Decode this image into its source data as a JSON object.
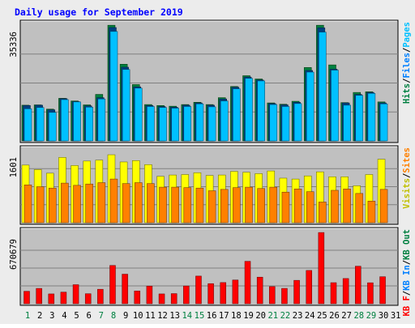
{
  "chart_data": {
    "title": "Daily usage for September 2019",
    "colors": {
      "title": "#0000ff",
      "background": "#ececec",
      "panel": "#c0c0c0",
      "hits_front": "#00c0ff",
      "hits_back": "#008040",
      "files_front": "#0080ff",
      "files_back": "#004080",
      "pages": "#00c0ff",
      "visits": "#ffff00",
      "sites": "#ff8000",
      "kbytes": "#ff0000",
      "weekend_day": "#008040",
      "weekday": "#000000"
    },
    "days": [
      {
        "label": "1",
        "weekend": true
      },
      {
        "label": "2",
        "weekend": false
      },
      {
        "label": "3",
        "weekend": false
      },
      {
        "label": "4",
        "weekend": false
      },
      {
        "label": "5",
        "weekend": false
      },
      {
        "label": "6",
        "weekend": false
      },
      {
        "label": "7",
        "weekend": true
      },
      {
        "label": "8",
        "weekend": true
      },
      {
        "label": "9",
        "weekend": false
      },
      {
        "label": "10",
        "weekend": false
      },
      {
        "label": "11",
        "weekend": false
      },
      {
        "label": "12",
        "weekend": false
      },
      {
        "label": "13",
        "weekend": false
      },
      {
        "label": "14",
        "weekend": true
      },
      {
        "label": "15",
        "weekend": true
      },
      {
        "label": "16",
        "weekend": false
      },
      {
        "label": "17",
        "weekend": false
      },
      {
        "label": "18",
        "weekend": false
      },
      {
        "label": "19",
        "weekend": false
      },
      {
        "label": "20",
        "weekend": false
      },
      {
        "label": "21",
        "weekend": true
      },
      {
        "label": "22",
        "weekend": true
      },
      {
        "label": "23",
        "weekend": false
      },
      {
        "label": "24",
        "weekend": false
      },
      {
        "label": "25",
        "weekend": false
      },
      {
        "label": "26",
        "weekend": false
      },
      {
        "label": "27",
        "weekend": false
      },
      {
        "label": "28",
        "weekend": true
      },
      {
        "label": "29",
        "weekend": true
      },
      {
        "label": "30",
        "weekend": false
      },
      {
        "label": "31",
        "weekend": false
      }
    ],
    "panels": [
      {
        "key": "hits",
        "ymax_label": "35336",
        "ymax": 35336,
        "axis_labels": [
          {
            "text": "Hits",
            "color": "#008040"
          },
          {
            "text": "/",
            "color": "#000000"
          },
          {
            "text": "Files",
            "color": "#0080ff"
          },
          {
            "text": "/",
            "color": "#000000"
          },
          {
            "text": "Pages",
            "color": "#00c0ff"
          }
        ],
        "series": [
          {
            "name": "Hits",
            "values": [
              10900,
              11000,
              9700,
              13000,
              12200,
              11000,
              14200,
              35300,
              23400,
              17200,
              11100,
              10800,
              10600,
              11100,
              11800,
              11100,
              13200,
              16600,
              19900,
              18900,
              11600,
              11200,
              12100,
              22400,
              35300,
              23200,
              11700,
              14800,
              15000,
              11900,
              null
            ]
          },
          {
            "name": "Files",
            "values": [
              10800,
              10900,
              9500,
              12900,
              12000,
              10700,
              13200,
              34600,
              22500,
              16500,
              10800,
              10500,
              10300,
              10900,
              11600,
              10900,
              12800,
              16400,
              19500,
              18600,
              11400,
              11000,
              11800,
              21500,
              34500,
              21900,
              11600,
              14200,
              14800,
              11600,
              null
            ]
          },
          {
            "name": "Pages",
            "values": [
              9800,
              10200,
              8700,
              12600,
              11900,
              10300,
              12800,
              33400,
              21800,
              16100,
              10500,
              10200,
              10000,
              10500,
              11300,
              10400,
              12200,
              15900,
              19100,
              18300,
              11100,
              10500,
              11400,
              21000,
              33200,
              21600,
              10900,
              13900,
              14500,
              11300,
              null
            ]
          }
        ]
      },
      {
        "key": "visits",
        "ymax_label": "1601",
        "ymax": 1601,
        "axis_labels": [
          {
            "text": "Visits",
            "color": "#c0c000"
          },
          {
            "text": "/",
            "color": "#000000"
          },
          {
            "text": "Sites",
            "color": "#ff8000"
          }
        ],
        "series": [
          {
            "name": "Visits",
            "values": [
              1280,
              1180,
              1100,
              1450,
              1270,
              1370,
              1390,
              1510,
              1350,
              1380,
              1290,
              1030,
              1060,
              1070,
              1110,
              1050,
              1060,
              1140,
              1120,
              1090,
              1150,
              990,
              970,
              1040,
              1130,
              1020,
              1020,
              820,
              1070,
              1410,
              null
            ]
          },
          {
            "name": "Sites",
            "values": [
              840,
              800,
              770,
              880,
              830,
              860,
              890,
              970,
              870,
              890,
              870,
              790,
              790,
              780,
              770,
              710,
              740,
              780,
              790,
              760,
              790,
              680,
              750,
              690,
              460,
              720,
              750,
              650,
              480,
              740,
              null
            ]
          }
        ]
      },
      {
        "key": "kbytes",
        "ymax_label": "670679",
        "ymax": 670679,
        "axis_labels": [
          {
            "text": "KB F",
            "color": "#ff0000"
          },
          {
            "text": "/",
            "color": "#000000"
          },
          {
            "text": "KB In",
            "color": "#0080ff"
          },
          {
            "text": "/",
            "color": "#000000"
          },
          {
            "text": "KB Out",
            "color": "#008040"
          }
        ],
        "series": [
          {
            "name": "KB F",
            "values": [
              117000,
              144000,
              92000,
              109000,
              179000,
              94000,
              136000,
              360000,
              278000,
              120000,
              166000,
              92000,
              95000,
              167000,
              260000,
              189000,
              199000,
              223000,
              399000,
              250000,
              161000,
              144000,
              220000,
              313000,
              670000,
              198000,
              237000,
              353000,
              197000,
              254000,
              null
            ]
          }
        ]
      }
    ]
  }
}
